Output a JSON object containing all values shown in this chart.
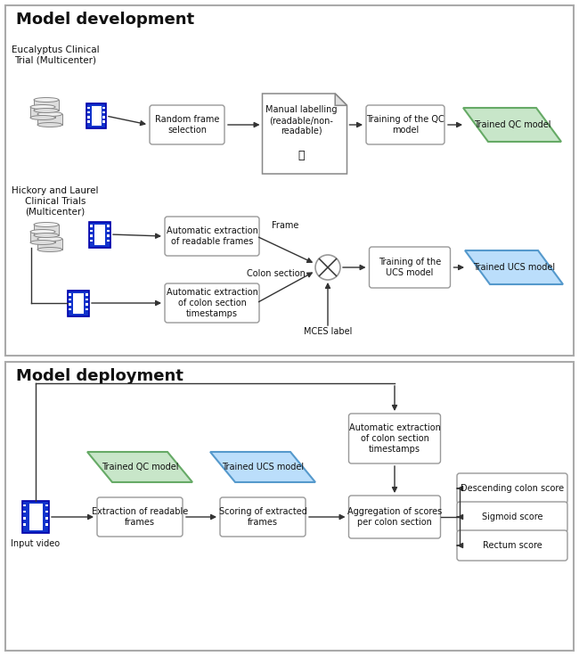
{
  "background": "#ffffff",
  "box_fill": "#ffffff",
  "box_edge": "#999999",
  "green_fill": "#c8e6c9",
  "green_edge": "#66aa66",
  "blue_fill": "#bbdefb",
  "blue_edge": "#5599cc",
  "text_color": "#111111",
  "arrow_color": "#333333",
  "film_blue": "#1133cc",
  "film_dark": "#0000aa",
  "cyl_fill": "#dddddd",
  "cyl_edge": "#888888",
  "panel_edge": "#aaaaaa",
  "title_dev": "Model development",
  "title_dep": "Model deployment",
  "lbl_eucalyptus": "Eucalyptus Clinical\nTrial (Multicenter)",
  "lbl_hickory": "Hickory and Laurel\nClinical Trials\n(Multicenter)",
  "lbl_random": "Random frame\nselection",
  "lbl_manual": "Manual labelling\n(readable/non-\nreadable)",
  "lbl_train_qc": "Training of the QC\nmodel",
  "lbl_trained_qc": "Trained QC model",
  "lbl_auto_readable": "Automatic extraction\nof readable frames",
  "lbl_auto_colon": "Automatic extraction\nof colon section\ntimestamps",
  "lbl_train_ucs": "Training of the\nUCS model",
  "lbl_trained_ucs": "Trained UCS model",
  "lbl_frame": "Frame",
  "lbl_colon_section": "Colon section",
  "lbl_mces": "MCES label",
  "lbl_input_video": "Input video",
  "lbl_extract_readable": "Extraction of readable\nframes",
  "lbl_scoring": "Scoring of extracted\nframes",
  "lbl_aggregation": "Aggregation of scores\nper colon section",
  "lbl_auto_extract_ts": "Automatic extraction\nof colon section\ntimestamps",
  "lbl_descending": "Descending colon score",
  "lbl_sigmoid": "Sigmoid score",
  "lbl_rectum": "Rectum score"
}
